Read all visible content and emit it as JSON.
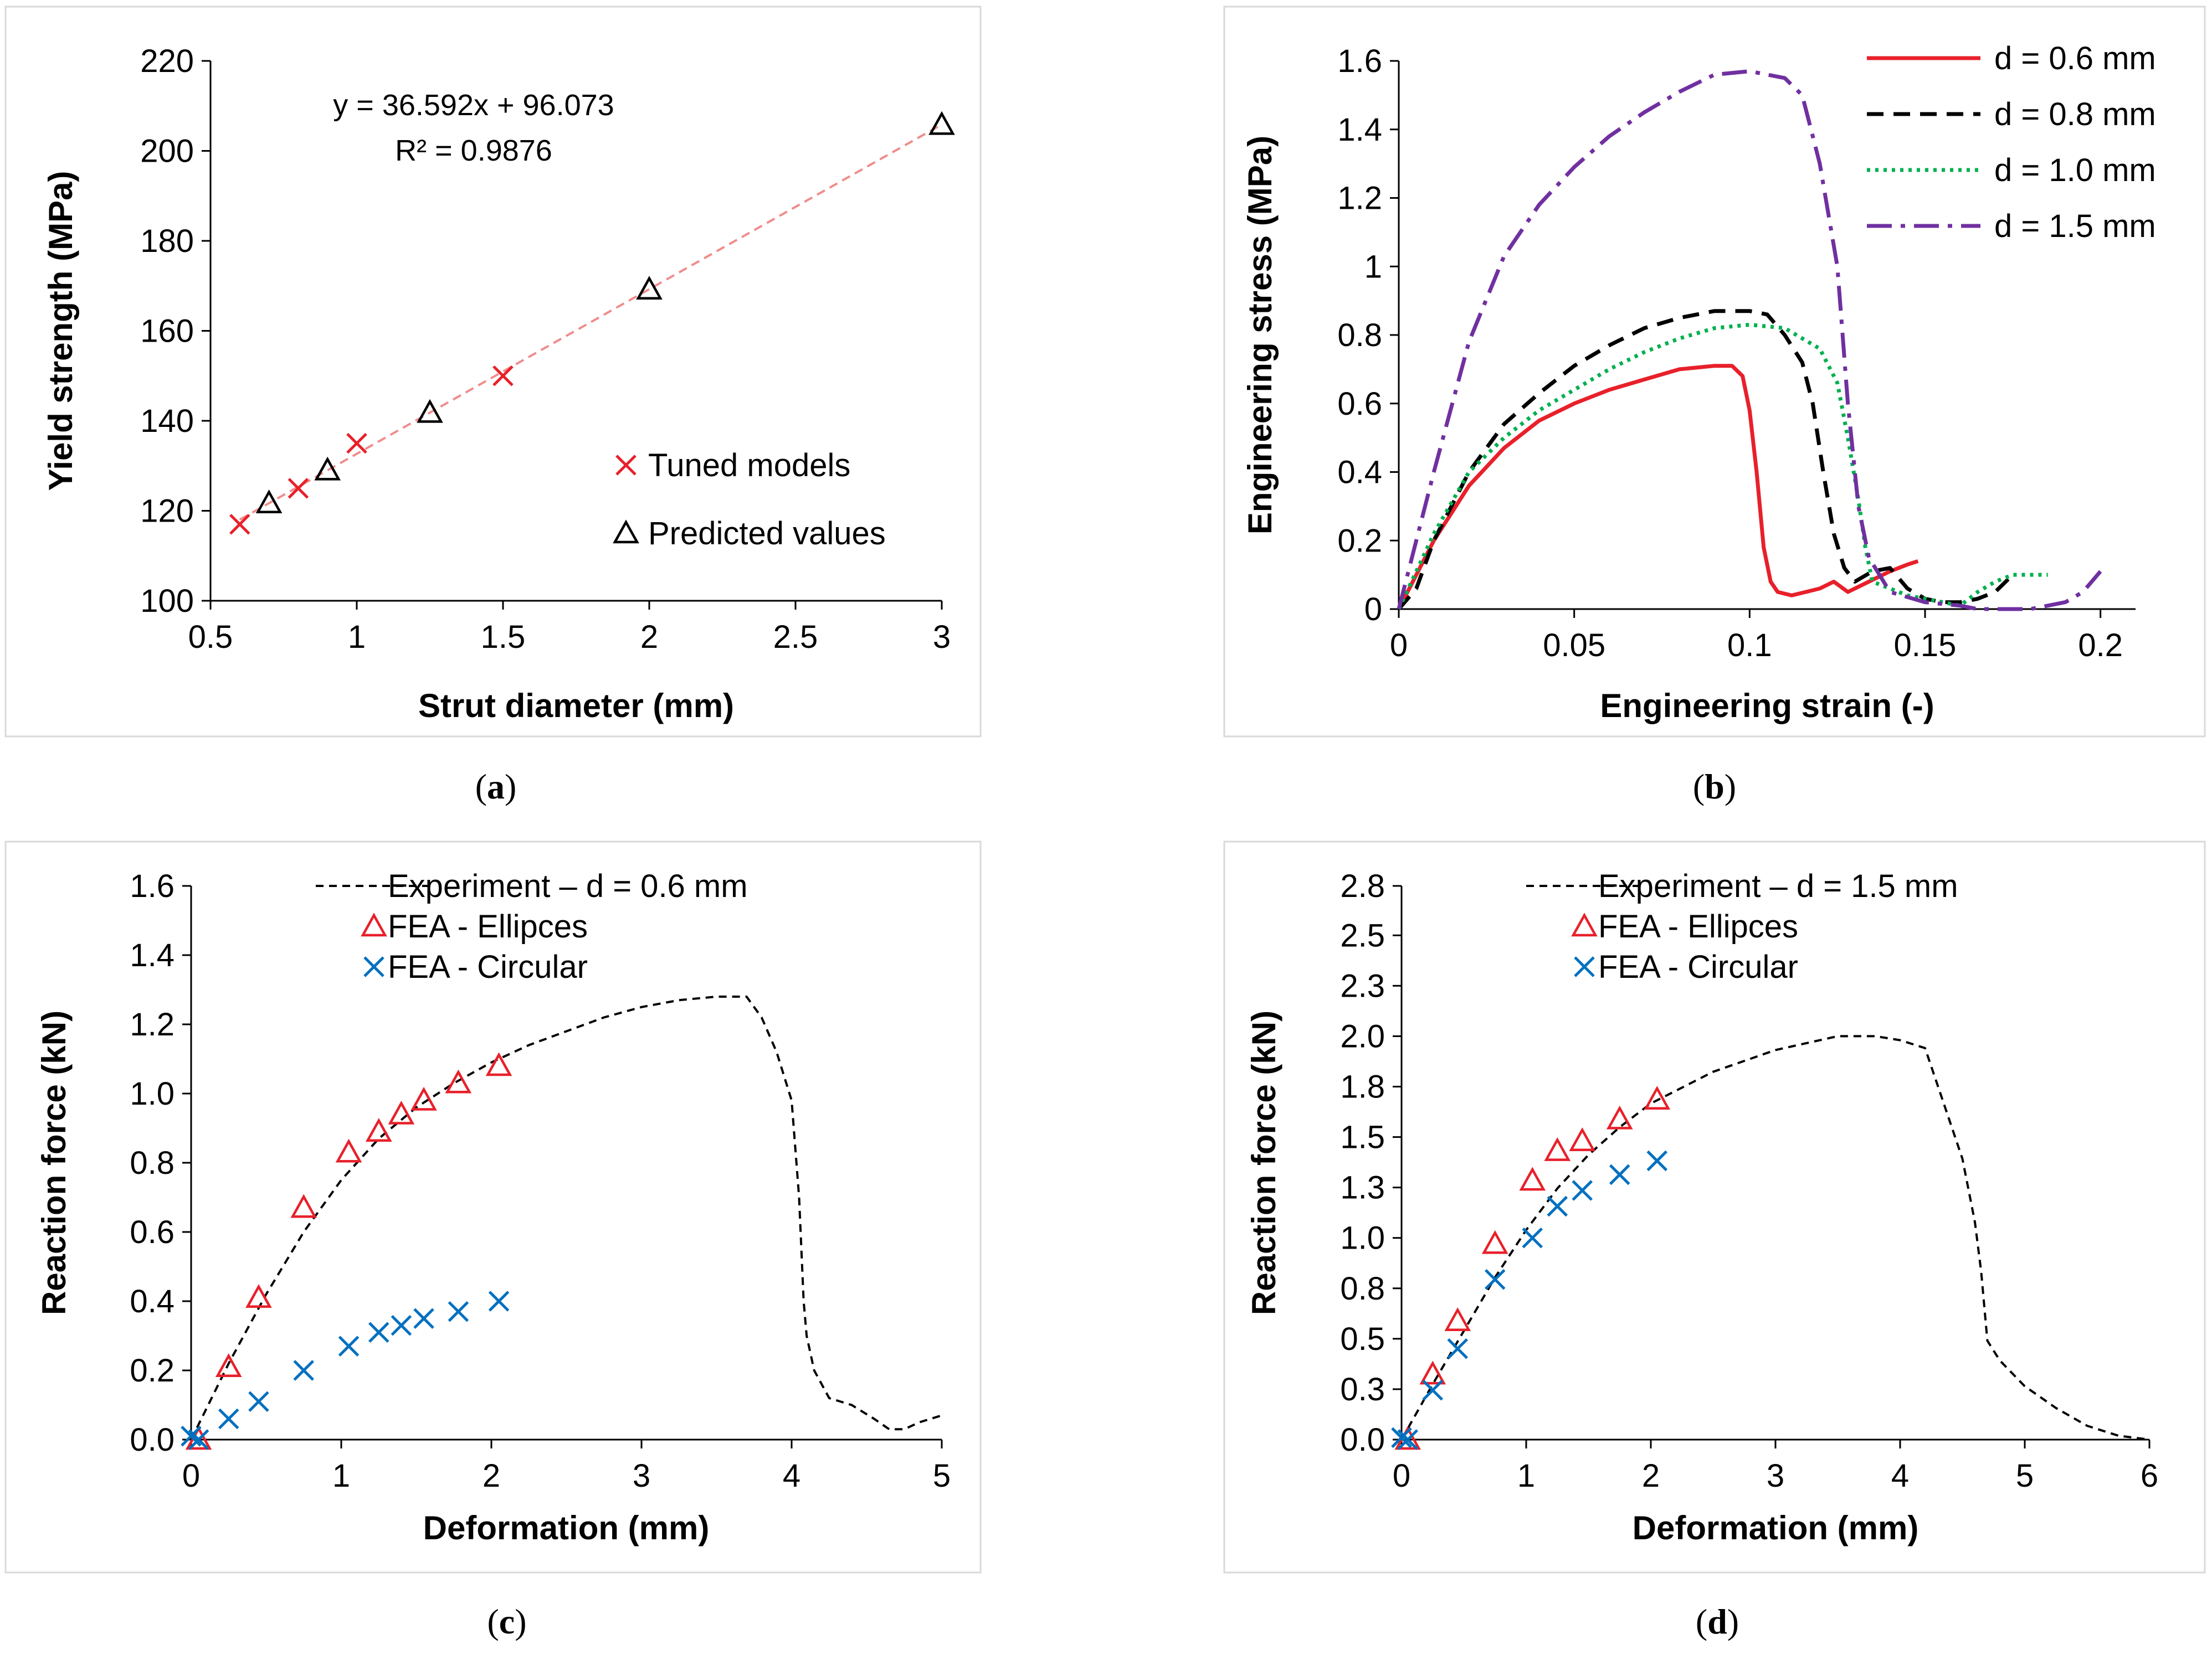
{
  "chart_data": [
    {
      "id": "a",
      "type": "scatter",
      "caption": {
        "open": "(",
        "letter": "a",
        "close": ")"
      },
      "xlabel": "Strut diameter (mm)",
      "ylabel": "Yield strength (MPa)",
      "xlim": [
        0.5,
        3
      ],
      "ylim": [
        100,
        220
      ],
      "xticks": [
        0.5,
        1,
        1.5,
        2,
        2.5,
        3
      ],
      "xtick_labels": [
        "0.5",
        "1",
        "1.5",
        "2",
        "2.5",
        "3"
      ],
      "yticks": [
        100,
        120,
        140,
        160,
        180,
        200,
        220
      ],
      "ytick_labels": [
        "100",
        "120",
        "140",
        "160",
        "180",
        "200",
        "220"
      ],
      "grid": false,
      "legend_position": "bottom-right",
      "series": [
        {
          "name": "Tuned models",
          "marker": "x",
          "color": "#e8202a",
          "x": [
            0.6,
            0.8,
            1.0,
            1.5
          ],
          "y": [
            117,
            125,
            135,
            150
          ]
        },
        {
          "name": "Predicted values",
          "marker": "triangle",
          "color": "#000000",
          "x": [
            0.7,
            0.9,
            1.25,
            2.0,
            3.0
          ],
          "y": [
            121.7,
            129,
            141.8,
            169.2,
            205.8
          ]
        }
      ],
      "trendline": {
        "slope": 36.592,
        "intercept": 96.073,
        "x_range": [
          0.6,
          3.0
        ],
        "color": "#f08c8c",
        "equation": "y = 36.592x + 96.073",
        "r2_label": "R² = 0.9876"
      }
    },
    {
      "id": "b",
      "type": "line",
      "caption": {
        "open": "(",
        "letter": "b",
        "close": ")"
      },
      "xlabel": "Engineering strain (-)",
      "ylabel": "Engineering stress (MPa)",
      "xlim": [
        0,
        0.21
      ],
      "ylim": [
        0,
        1.6
      ],
      "xticks": [
        0,
        0.05,
        0.1,
        0.15,
        0.2
      ],
      "xtick_labels": [
        "0",
        "0.05",
        "0.1",
        "0.15",
        "0.2"
      ],
      "yticks": [
        0,
        0.2,
        0.4,
        0.6,
        0.8,
        1,
        1.2,
        1.4,
        1.6
      ],
      "ytick_labels": [
        "0",
        "0.2",
        "0.4",
        "0.6",
        "0.8",
        "1",
        "1.2",
        "1.4",
        "1.6"
      ],
      "grid": false,
      "legend_position": "top-right",
      "series": [
        {
          "name": "d = 0.6 mm",
          "style": "solid",
          "color": "#e8202a",
          "x": [
            0,
            0.01,
            0.02,
            0.03,
            0.04,
            0.05,
            0.06,
            0.07,
            0.08,
            0.09,
            0.095,
            0.098,
            0.1,
            0.102,
            0.104,
            0.106,
            0.108,
            0.112,
            0.116,
            0.12,
            0.124,
            0.128,
            0.132,
            0.136,
            0.14,
            0.145,
            0.148
          ],
          "y": [
            0,
            0.2,
            0.36,
            0.47,
            0.55,
            0.6,
            0.64,
            0.67,
            0.7,
            0.71,
            0.71,
            0.68,
            0.58,
            0.4,
            0.18,
            0.08,
            0.05,
            0.04,
            0.05,
            0.06,
            0.08,
            0.05,
            0.07,
            0.09,
            0.11,
            0.13,
            0.14
          ]
        },
        {
          "name": "d = 0.8 mm",
          "style": "dashed",
          "color": "#000000",
          "x": [
            0,
            0.005,
            0.01,
            0.02,
            0.03,
            0.04,
            0.05,
            0.06,
            0.07,
            0.08,
            0.09,
            0.1,
            0.105,
            0.11,
            0.115,
            0.118,
            0.121,
            0.124,
            0.127,
            0.13,
            0.135,
            0.14,
            0.145,
            0.15,
            0.155,
            0.16,
            0.165,
            0.17,
            0.175
          ],
          "y": [
            0,
            0.06,
            0.2,
            0.4,
            0.54,
            0.63,
            0.71,
            0.77,
            0.82,
            0.85,
            0.87,
            0.87,
            0.86,
            0.8,
            0.72,
            0.6,
            0.4,
            0.22,
            0.12,
            0.08,
            0.11,
            0.12,
            0.06,
            0.03,
            0.02,
            0.02,
            0.03,
            0.05,
            0.1
          ]
        },
        {
          "name": "d = 1.0 mm",
          "style": "dotted",
          "color": "#00b050",
          "x": [
            0,
            0.01,
            0.02,
            0.03,
            0.04,
            0.05,
            0.06,
            0.07,
            0.08,
            0.09,
            0.1,
            0.11,
            0.12,
            0.125,
            0.128,
            0.131,
            0.133,
            0.135,
            0.14,
            0.145,
            0.15,
            0.155,
            0.16,
            0.165,
            0.17,
            0.175,
            0.18,
            0.185
          ],
          "y": [
            0,
            0.22,
            0.4,
            0.5,
            0.58,
            0.64,
            0.7,
            0.75,
            0.79,
            0.82,
            0.83,
            0.82,
            0.76,
            0.66,
            0.5,
            0.32,
            0.18,
            0.08,
            0.06,
            0.04,
            0.03,
            0.02,
            0.01,
            0.05,
            0.08,
            0.1,
            0.1,
            0.1
          ]
        },
        {
          "name": "d = 1.5 mm",
          "style": "dashdot",
          "color": "#7030a0",
          "x": [
            0,
            0.01,
            0.02,
            0.03,
            0.04,
            0.05,
            0.06,
            0.07,
            0.08,
            0.09,
            0.1,
            0.105,
            0.11,
            0.115,
            0.12,
            0.125,
            0.128,
            0.131,
            0.134,
            0.14,
            0.15,
            0.16,
            0.165,
            0.17,
            0.175,
            0.18,
            0.185,
            0.19,
            0.195,
            0.2
          ],
          "y": [
            0,
            0.4,
            0.78,
            1.03,
            1.18,
            1.29,
            1.38,
            1.45,
            1.51,
            1.56,
            1.57,
            1.56,
            1.55,
            1.5,
            1.3,
            1.0,
            0.6,
            0.3,
            0.15,
            0.05,
            0.02,
            0.01,
            0.0,
            0.0,
            0.0,
            0.0,
            0.01,
            0.02,
            0.05,
            0.11
          ]
        }
      ]
    },
    {
      "id": "c",
      "type": "scatter",
      "caption": {
        "open": "(",
        "letter": "c",
        "close": ")"
      },
      "xlabel": "Deformation (mm)",
      "ylabel": "Reaction force (kN)",
      "xlim": [
        0,
        5
      ],
      "ylim": [
        0,
        1.6
      ],
      "xticks": [
        0,
        1,
        2,
        3,
        4,
        5
      ],
      "xtick_labels": [
        "0",
        "1",
        "2",
        "3",
        "4",
        "5"
      ],
      "yticks": [
        0,
        0.2,
        0.4,
        0.6,
        0.8,
        1.0,
        1.2,
        1.4,
        1.6
      ],
      "ytick_labels": [
        "0.0",
        "0.2",
        "0.4",
        "0.6",
        "0.8",
        "1.0",
        "1.2",
        "1.4",
        "1.6"
      ],
      "grid": false,
      "legend_position": "top-center",
      "series": [
        {
          "name": "Experiment – d = 0.6 mm",
          "marker": "dashed-line",
          "color": "#000000",
          "x": [
            0,
            0.25,
            0.5,
            0.75,
            1.0,
            1.25,
            1.5,
            1.75,
            2.0,
            2.25,
            2.5,
            2.75,
            3.0,
            3.25,
            3.5,
            3.7,
            3.8,
            3.9,
            4.0,
            4.05,
            4.08,
            4.1,
            4.15,
            4.25,
            4.4,
            4.55,
            4.65,
            4.75,
            4.85,
            5.0
          ],
          "y": [
            0,
            0.22,
            0.42,
            0.6,
            0.75,
            0.87,
            0.96,
            1.03,
            1.09,
            1.14,
            1.18,
            1.22,
            1.25,
            1.27,
            1.28,
            1.28,
            1.22,
            1.12,
            0.98,
            0.7,
            0.4,
            0.3,
            0.2,
            0.12,
            0.1,
            0.06,
            0.03,
            0.03,
            0.05,
            0.07
          ]
        },
        {
          "name": "FEA - Ellipces",
          "marker": "triangle",
          "color": "#e8202a",
          "x": [
            0.05,
            0.25,
            0.45,
            0.75,
            1.05,
            1.25,
            1.4,
            1.55,
            1.78,
            2.05
          ],
          "y": [
            0.0,
            0.21,
            0.41,
            0.67,
            0.83,
            0.89,
            0.94,
            0.98,
            1.03,
            1.08
          ]
        },
        {
          "name": "FEA - Circular",
          "marker": "x",
          "color": "#0070c0",
          "x": [
            0.0,
            0.05,
            0.25,
            0.45,
            0.75,
            1.05,
            1.25,
            1.4,
            1.55,
            1.78,
            2.05
          ],
          "y": [
            0.01,
            0.0,
            0.06,
            0.11,
            0.2,
            0.27,
            0.31,
            0.33,
            0.35,
            0.37,
            0.4
          ]
        }
      ]
    },
    {
      "id": "d",
      "type": "scatter",
      "caption": {
        "open": "(",
        "letter": "d",
        "close": ")"
      },
      "xlabel": "Deformation (mm)",
      "ylabel": "Reaction force (kN)",
      "xlim": [
        0,
        6
      ],
      "ylim": [
        0,
        2.8
      ],
      "xticks": [
        0,
        1,
        2,
        3,
        4,
        5,
        6
      ],
      "xtick_labels": [
        "0",
        "1",
        "2",
        "3",
        "4",
        "5",
        "6"
      ],
      "yticks": [
        0,
        0.255,
        0.51,
        0.765,
        1.02,
        1.275,
        1.53,
        1.785,
        2.04,
        2.295,
        2.55,
        2.8
      ],
      "ytick_labels": [
        "0.0",
        "0.3",
        "0.5",
        "0.8",
        "1.0",
        "1.3",
        "1.5",
        "1.8",
        "2.0",
        "2.3",
        "2.5",
        "2.8"
      ],
      "grid": false,
      "legend_position": "top-center",
      "series": [
        {
          "name": "Experiment – d = 1.5 mm",
          "marker": "dashed-line",
          "color": "#000000",
          "x": [
            0,
            0.25,
            0.5,
            0.75,
            1.0,
            1.25,
            1.5,
            1.75,
            2.0,
            2.5,
            3.0,
            3.5,
            3.8,
            4.0,
            4.2,
            4.35,
            4.5,
            4.6,
            4.65,
            4.7,
            4.8,
            5.0,
            5.25,
            5.5,
            5.75,
            6.0
          ],
          "y": [
            0,
            0.28,
            0.55,
            0.82,
            1.06,
            1.27,
            1.44,
            1.58,
            1.7,
            1.86,
            1.97,
            2.04,
            2.04,
            2.02,
            1.98,
            1.7,
            1.42,
            1.1,
            0.85,
            0.5,
            0.4,
            0.27,
            0.16,
            0.07,
            0.02,
            0.0
          ]
        },
        {
          "name": "FEA - Ellipces",
          "marker": "triangle",
          "color": "#e8202a",
          "x": [
            0.05,
            0.25,
            0.45,
            0.75,
            1.05,
            1.25,
            1.45,
            1.75,
            2.05
          ],
          "y": [
            0.0,
            0.33,
            0.6,
            0.99,
            1.31,
            1.46,
            1.51,
            1.62,
            1.72
          ]
        },
        {
          "name": "FEA - Circular",
          "marker": "x",
          "color": "#0070c0",
          "x": [
            0.0,
            0.05,
            0.25,
            0.45,
            0.75,
            1.05,
            1.25,
            1.45,
            1.75,
            2.05
          ],
          "y": [
            0.01,
            0.0,
            0.25,
            0.46,
            0.81,
            1.02,
            1.18,
            1.26,
            1.34,
            1.41
          ]
        }
      ]
    }
  ]
}
